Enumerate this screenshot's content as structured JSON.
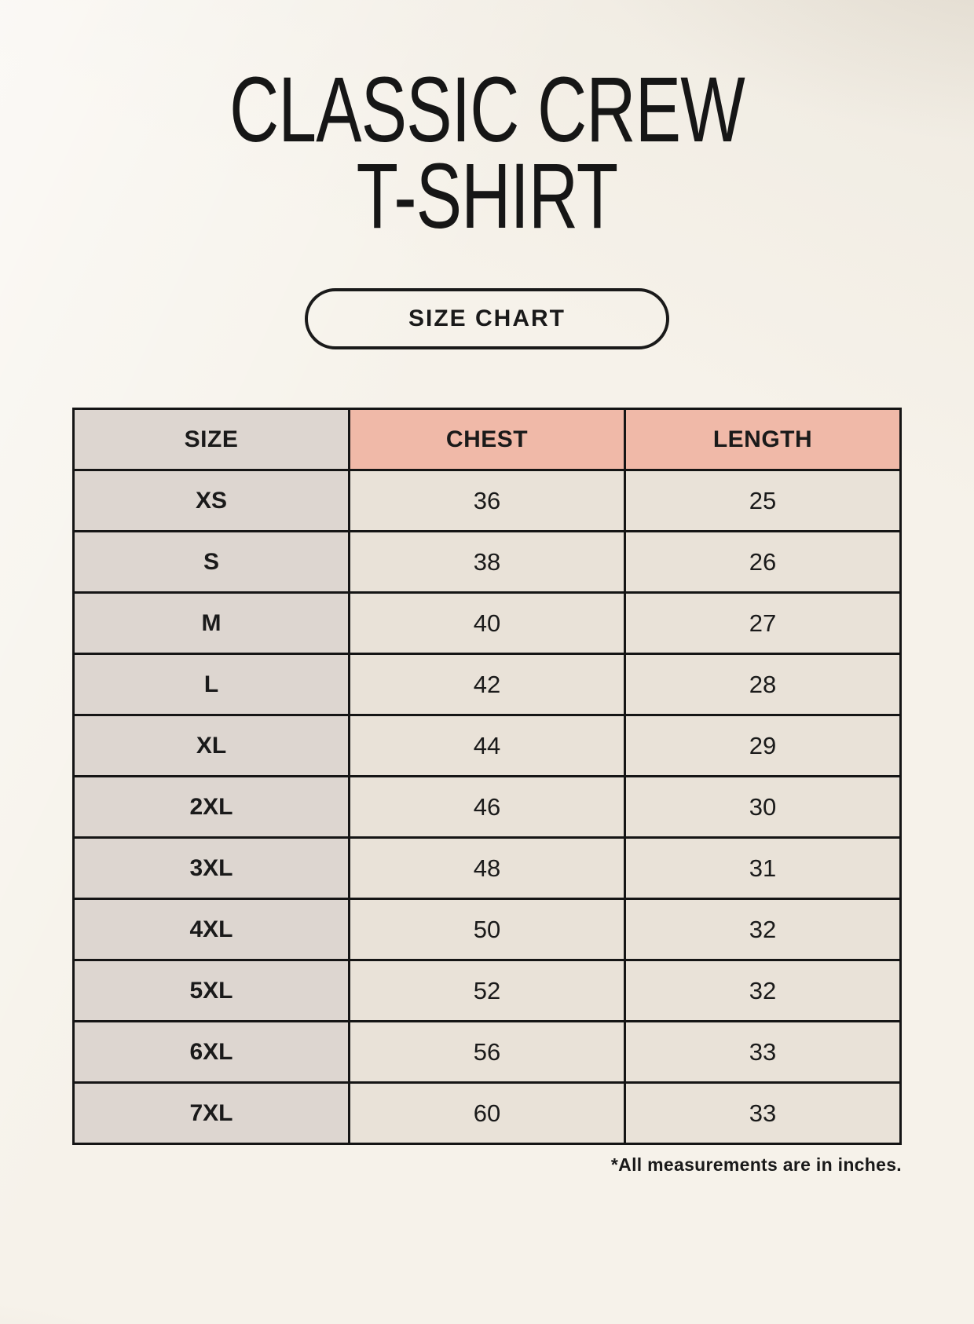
{
  "header": {
    "title_line1": "CLASSIC CREW",
    "title_line2": "T-SHIRT",
    "badge_label": "SIZE CHART"
  },
  "footer": {
    "note": "*All measurements are in inches."
  },
  "colors": {
    "page_background": "#f6f2ea",
    "accent_header": "#f0b9a8",
    "size_column": "#ddd6d0",
    "value_cell": "#e9e2d8",
    "border": "#151515",
    "text": "#1a1a1a"
  },
  "chart_data": {
    "type": "table",
    "title": "CLASSIC CREW T-SHIRT",
    "columns": [
      "SIZE",
      "CHEST",
      "LENGTH"
    ],
    "rows": [
      [
        "XS",
        "36",
        "25"
      ],
      [
        "S",
        "38",
        "26"
      ],
      [
        "M",
        "40",
        "27"
      ],
      [
        "L",
        "42",
        "28"
      ],
      [
        "XL",
        "44",
        "29"
      ],
      [
        "2XL",
        "46",
        "30"
      ],
      [
        "3XL",
        "48",
        "31"
      ],
      [
        "4XL",
        "50",
        "32"
      ],
      [
        "5XL",
        "52",
        "32"
      ],
      [
        "6XL",
        "56",
        "33"
      ],
      [
        "7XL",
        "60",
        "33"
      ]
    ],
    "units": "inches",
    "layout": {
      "header_fills": [
        "#ddd6d0",
        "#f0b9a8",
        "#f0b9a8"
      ],
      "first_column_fill": "#ddd6d0",
      "cell_fill": "#e9e2d8",
      "grid": true
    }
  }
}
